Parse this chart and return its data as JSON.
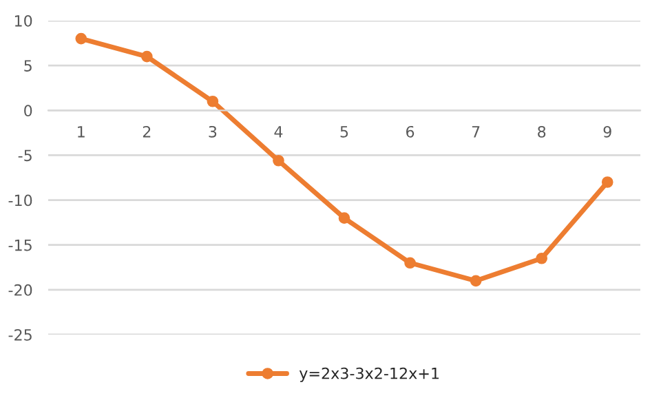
{
  "chart_data": {
    "type": "line",
    "categories": [
      "1",
      "2",
      "3",
      "4",
      "5",
      "6",
      "7",
      "8",
      "9"
    ],
    "series": [
      {
        "name": "y=2x3-3x2-12x+1",
        "color": "#ed7d31",
        "values": [
          8,
          6,
          1,
          -5.6,
          -12,
          -17,
          -19,
          -16.5,
          -8
        ]
      }
    ],
    "ylim": [
      -25,
      10
    ],
    "yticks": [
      -25,
      -20,
      -15,
      -10,
      -5,
      0,
      5,
      10
    ],
    "grid": "y",
    "legend": "bottom",
    "marker": "circle",
    "line_style": "solid"
  }
}
